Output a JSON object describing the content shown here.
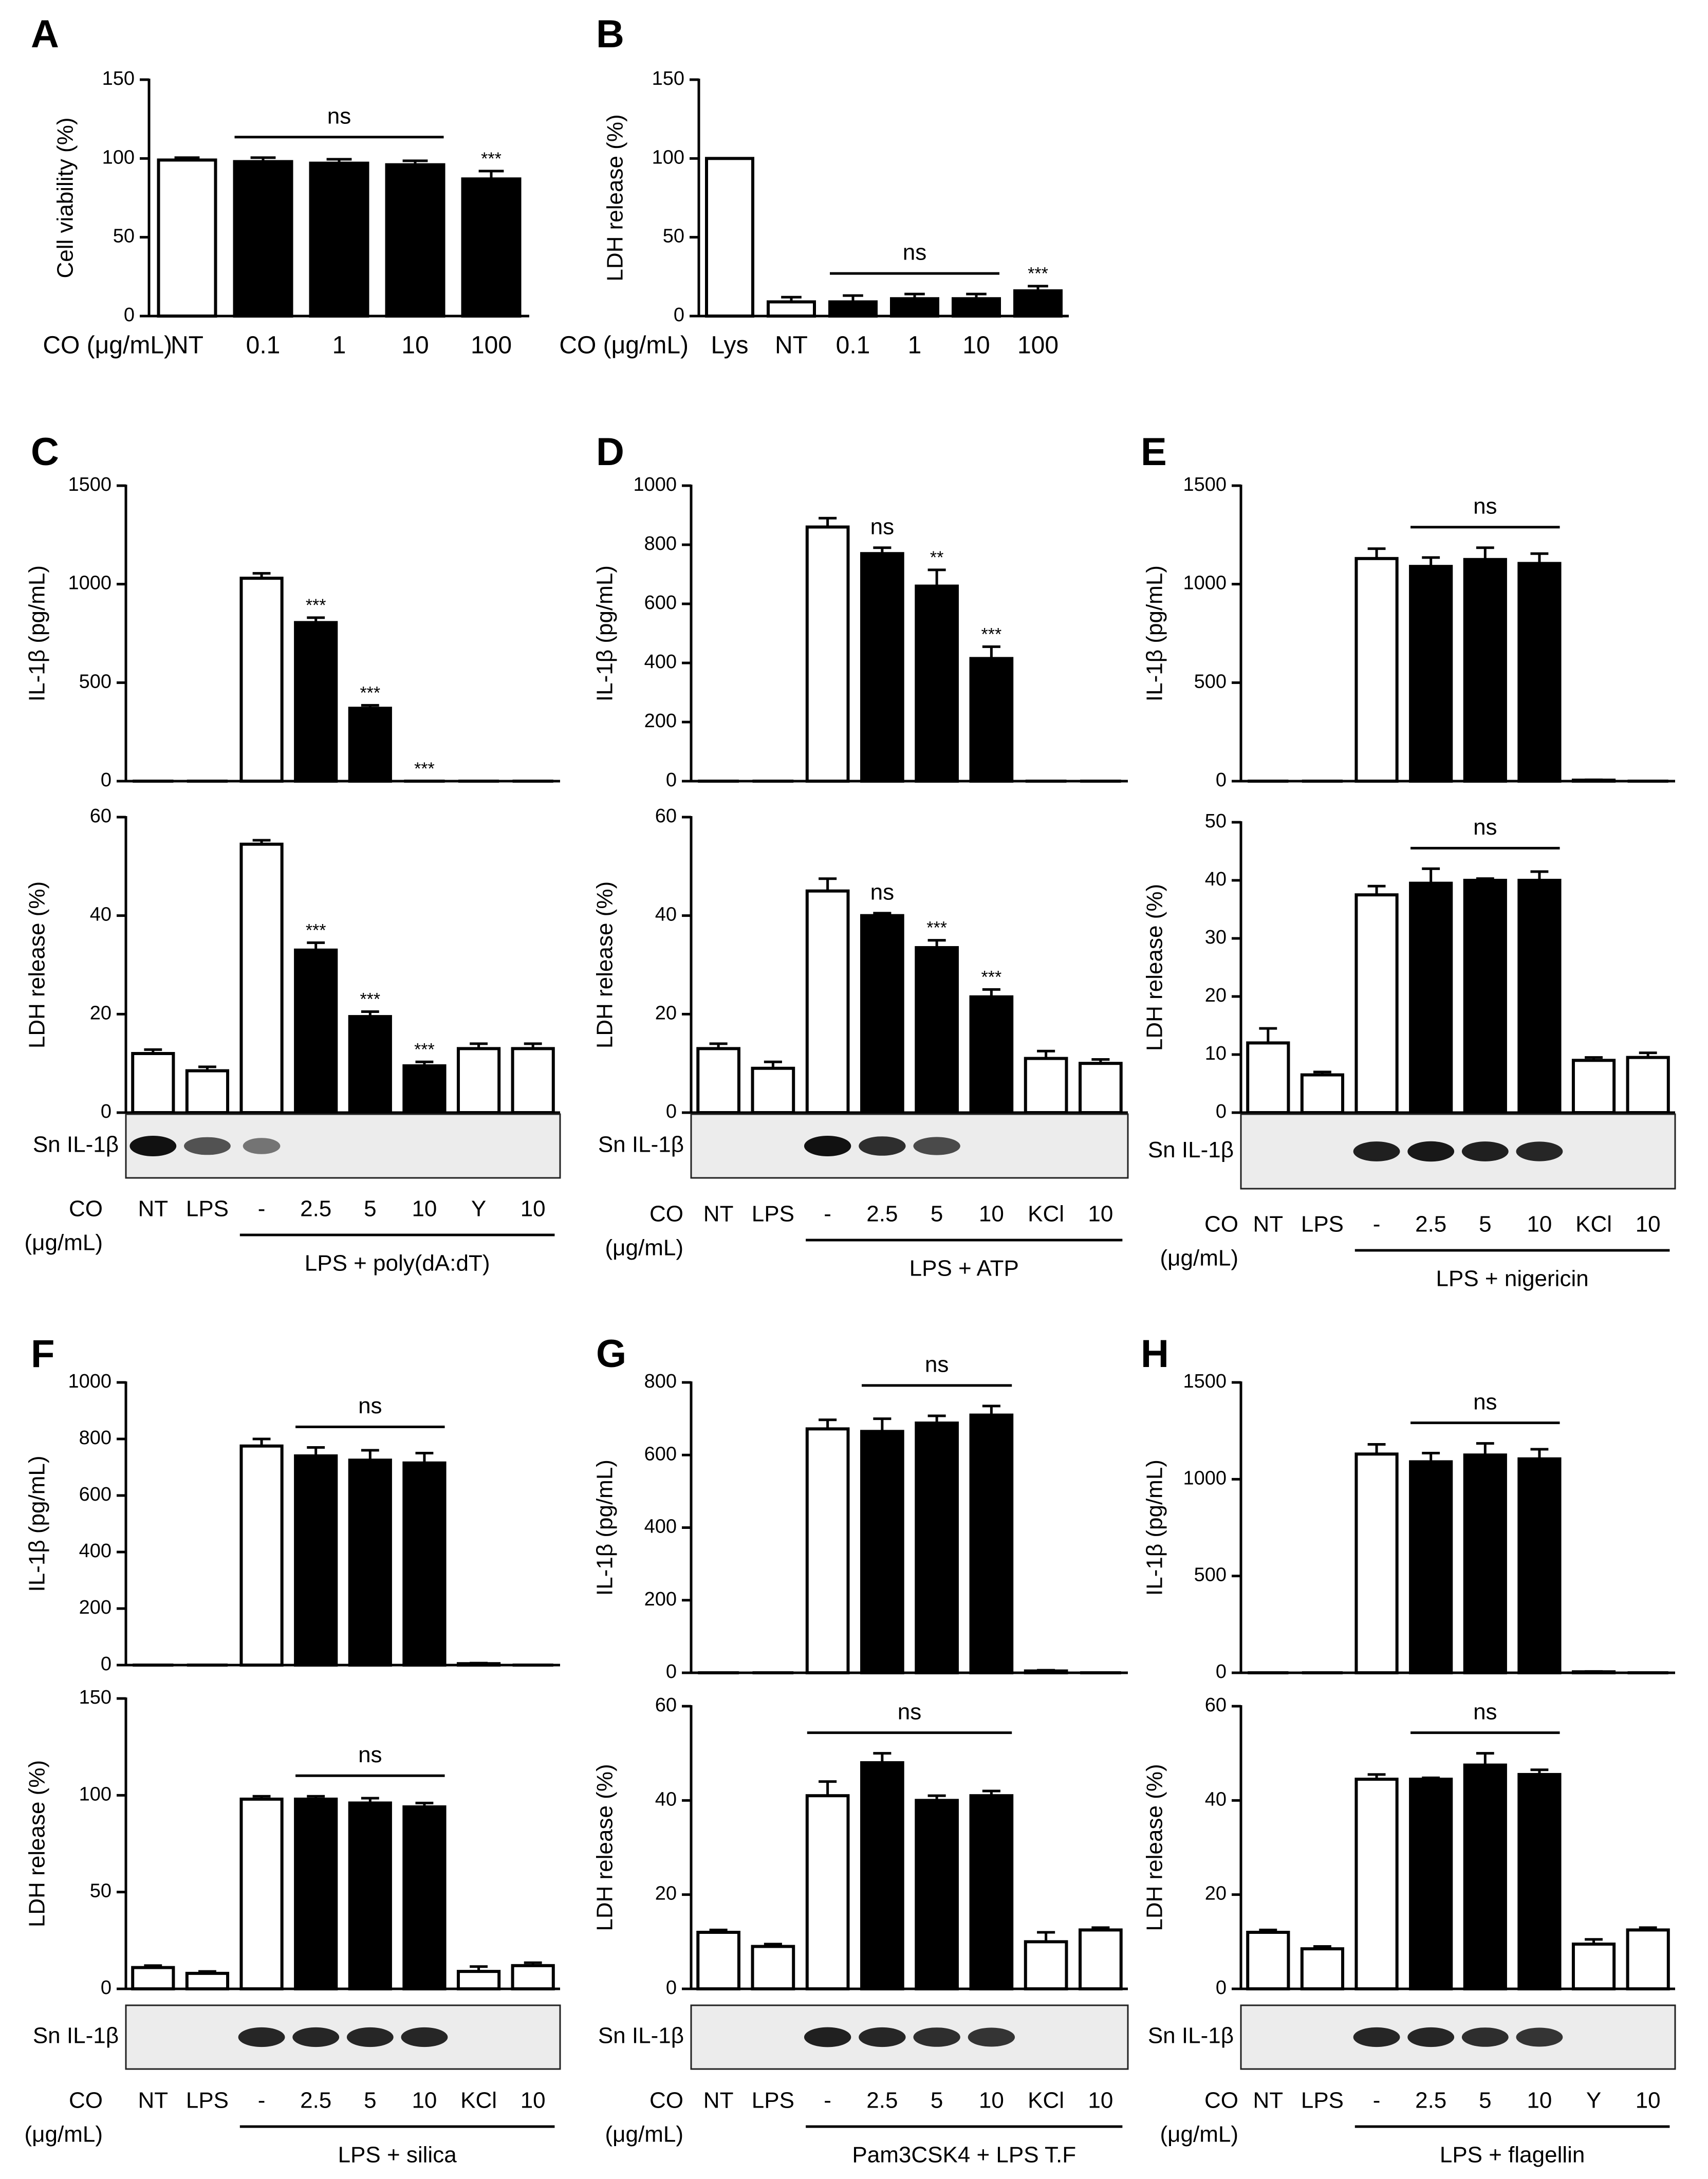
{
  "chart_data": [
    {
      "panel": "A",
      "type": "bar",
      "categories": [
        "NT",
        "0.1",
        "1",
        "10",
        "100"
      ],
      "series": [
        {
          "name": "Cell viability",
          "values": [
            99,
            98,
            97,
            96,
            87
          ],
          "errors": [
            1.5,
            2.5,
            2.5,
            2.5,
            5
          ]
        }
      ],
      "fill": [
        "open",
        "filled",
        "filled",
        "filled",
        "filled"
      ],
      "ylabel": "Cell viability (%)",
      "xlabel": "CO (μg/mL)",
      "ylim": [
        0,
        150
      ],
      "yticks": [
        0,
        50,
        100,
        150
      ],
      "significance": [
        {
          "text": "***",
          "over": 4
        }
      ],
      "ns_bars": [
        {
          "from": 1,
          "to": 3,
          "text": "ns"
        }
      ]
    },
    {
      "panel": "B",
      "type": "bar",
      "categories": [
        "Lys",
        "NT",
        "0.1",
        "1",
        "10",
        "100"
      ],
      "series": [
        {
          "name": "LDH release",
          "values": [
            100,
            9,
            9,
            11,
            11,
            16
          ],
          "errors": [
            0,
            3,
            4,
            3,
            3,
            3
          ]
        }
      ],
      "fill": [
        "open",
        "open",
        "filled",
        "filled",
        "filled",
        "filled"
      ],
      "ylabel": "LDH release (%)",
      "xlabel": "CO (μg/mL)",
      "ylim": [
        0,
        150
      ],
      "yticks": [
        0,
        50,
        100,
        150
      ],
      "significance": [
        {
          "text": "***",
          "over": 5
        }
      ],
      "ns_bars": [
        {
          "from": 2,
          "to": 4,
          "text": "ns"
        }
      ]
    },
    {
      "panel": "C",
      "type": "bar",
      "categories": [
        "NT",
        "LPS",
        "-",
        "2.5",
        "5",
        "10",
        "Y",
        "10"
      ],
      "fill": [
        "open",
        "open",
        "open",
        "filled",
        "filled",
        "filled",
        "open",
        "open"
      ],
      "xlabel": "CO (μg/mL)",
      "group_label": "LPS + poly(dA:dT)",
      "group_range": [
        2,
        7
      ],
      "blot_label": "Sn IL-1β",
      "blot_bands": [
        1.0,
        0.55,
        0.3,
        0,
        0,
        0,
        0,
        0
      ],
      "top": {
        "ylabel": "IL-1β (pg/mL)",
        "ylim": [
          0,
          1500
        ],
        "yticks": [
          0,
          500,
          1000,
          1500
        ],
        "values": [
          0,
          0,
          1030,
          805,
          370,
          0,
          0,
          0
        ],
        "errors": [
          0,
          0,
          25,
          25,
          15,
          0,
          0,
          0
        ],
        "significance": [
          {
            "text": "***",
            "over": 3
          },
          {
            "text": "***",
            "over": 4
          },
          {
            "text": "***",
            "over": 5
          }
        ],
        "ns_bars": []
      },
      "bottom": {
        "ylabel": "LDH release (%)",
        "ylim": [
          0,
          60
        ],
        "yticks": [
          0,
          20,
          40,
          60
        ],
        "values": [
          12,
          8.5,
          54.5,
          33,
          19.5,
          9.5,
          13,
          13
        ],
        "errors": [
          0.8,
          0.8,
          0.8,
          1.5,
          1.0,
          0.8,
          1.0,
          1.0
        ],
        "significance": [
          {
            "text": "***",
            "over": 3
          },
          {
            "text": "***",
            "over": 4
          },
          {
            "text": "***",
            "over": 5
          }
        ],
        "ns_bars": []
      }
    },
    {
      "panel": "D",
      "type": "bar",
      "categories": [
        "NT",
        "LPS",
        "-",
        "2.5",
        "5",
        "10",
        "KCl",
        "10"
      ],
      "fill": [
        "open",
        "open",
        "open",
        "filled",
        "filled",
        "filled",
        "open",
        "open"
      ],
      "xlabel": "CO (μg/mL)",
      "group_label": "LPS + ATP",
      "group_range": [
        2,
        7
      ],
      "blot_label": "Sn IL-1β",
      "blot_bands": [
        0,
        0,
        1.0,
        0.8,
        0.6,
        0,
        0,
        0
      ],
      "top": {
        "ylabel": "IL-1β (pg/mL)",
        "ylim": [
          0,
          1000
        ],
        "yticks": [
          0,
          200,
          400,
          600,
          800,
          1000
        ],
        "values": [
          0,
          0,
          860,
          770,
          660,
          415,
          0,
          0
        ],
        "errors": [
          0,
          0,
          30,
          20,
          55,
          40,
          0,
          0
        ],
        "significance": [
          {
            "text": "ns",
            "over": 3
          },
          {
            "text": "**",
            "over": 4
          },
          {
            "text": "***",
            "over": 5
          }
        ],
        "ns_bars": []
      },
      "bottom": {
        "ylabel": "LDH release (%)",
        "ylim": [
          0,
          60
        ],
        "yticks": [
          0,
          20,
          40,
          60
        ],
        "values": [
          13,
          9,
          45,
          40,
          33.5,
          23.5,
          11,
          10
        ],
        "errors": [
          1.0,
          1.3,
          2.5,
          0.5,
          1.5,
          1.5,
          1.5,
          0.8
        ],
        "significance": [
          {
            "text": "ns",
            "over": 3
          },
          {
            "text": "***",
            "over": 4
          },
          {
            "text": "***",
            "over": 5
          }
        ],
        "ns_bars": []
      }
    },
    {
      "panel": "E",
      "type": "bar",
      "categories": [
        "NT",
        "LPS",
        "-",
        "2.5",
        "5",
        "10",
        "KCl",
        "10"
      ],
      "fill": [
        "open",
        "open",
        "open",
        "filled",
        "filled",
        "filled",
        "open",
        "open"
      ],
      "xlabel": "CO (μg/mL)",
      "group_label": "LPS + nigericin",
      "group_range": [
        2,
        7
      ],
      "blot_label": "Sn IL-1β",
      "blot_bands": [
        0,
        0,
        0.9,
        0.95,
        0.9,
        0.85,
        0,
        0
      ],
      "top": {
        "ylabel": "IL-1β (pg/mL)",
        "ylim": [
          0,
          1500
        ],
        "yticks": [
          0,
          500,
          1000,
          1500
        ],
        "values": [
          0,
          0,
          1130,
          1090,
          1125,
          1105,
          5,
          0
        ],
        "errors": [
          0,
          0,
          50,
          45,
          60,
          50,
          2,
          0
        ],
        "significance": [],
        "ns_bars": [
          {
            "from": 3,
            "to": 5,
            "text": "ns"
          }
        ]
      },
      "bottom": {
        "ylabel": "LDH release (%)",
        "ylim": [
          0,
          50
        ],
        "yticks": [
          0,
          10,
          20,
          30,
          40,
          50
        ],
        "values": [
          12,
          6.5,
          37.5,
          39.5,
          40,
          40,
          9,
          9.5
        ],
        "errors": [
          2.5,
          0.5,
          1.5,
          2.5,
          0.3,
          1.5,
          0.5,
          0.8
        ],
        "significance": [],
        "ns_bars": [
          {
            "from": 3,
            "to": 5,
            "text": "ns"
          }
        ]
      }
    },
    {
      "panel": "F",
      "type": "bar",
      "categories": [
        "NT",
        "LPS",
        "-",
        "2.5",
        "5",
        "10",
        "KCl",
        "10"
      ],
      "fill": [
        "open",
        "open",
        "open",
        "filled",
        "filled",
        "filled",
        "open",
        "open"
      ],
      "xlabel": "CO (μg/mL)",
      "group_label": "LPS + silica",
      "group_range": [
        2,
        7
      ],
      "blot_label": "Sn IL-1β",
      "blot_bands": [
        0,
        0,
        0.85,
        0.85,
        0.85,
        0.85,
        0,
        0
      ],
      "top": {
        "ylabel": "IL-1β (pg/mL)",
        "ylim": [
          0,
          1000
        ],
        "yticks": [
          0,
          200,
          400,
          600,
          800,
          1000
        ],
        "values": [
          0,
          0,
          775,
          740,
          725,
          715,
          5,
          0
        ],
        "errors": [
          0,
          0,
          25,
          30,
          35,
          35,
          2,
          0
        ],
        "significance": [],
        "ns_bars": [
          {
            "from": 3,
            "to": 5,
            "text": "ns"
          }
        ]
      },
      "bottom": {
        "ylabel": "LDH release (%)",
        "ylim": [
          0,
          150
        ],
        "yticks": [
          0,
          50,
          100,
          150
        ],
        "values": [
          11,
          8,
          98,
          98,
          96,
          94,
          9,
          12
        ],
        "errors": [
          1.0,
          1.0,
          1.5,
          1.5,
          2.5,
          2.0,
          2.5,
          1.5
        ],
        "significance": [],
        "ns_bars": [
          {
            "from": 3,
            "to": 5,
            "text": "ns"
          }
        ]
      }
    },
    {
      "panel": "G",
      "type": "bar",
      "categories": [
        "NT",
        "LPS",
        "-",
        "2.5",
        "5",
        "10",
        "KCl",
        "10"
      ],
      "fill": [
        "open",
        "open",
        "open",
        "filled",
        "filled",
        "filled",
        "open",
        "open"
      ],
      "xlabel": "CO (μg/mL)",
      "group_label": "Pam3CSK4 + LPS T.F",
      "group_range": [
        2,
        7
      ],
      "blot_label": "Sn IL-1β",
      "blot_bands": [
        0,
        0,
        0.9,
        0.85,
        0.8,
        0.75,
        0,
        0
      ],
      "top": {
        "ylabel": "IL-1β (pg/mL)",
        "ylim": [
          0,
          800
        ],
        "yticks": [
          0,
          200,
          400,
          600,
          800
        ],
        "values": [
          0,
          0,
          672,
          665,
          688,
          710,
          5,
          0
        ],
        "errors": [
          0,
          0,
          25,
          35,
          20,
          25,
          2,
          0
        ],
        "significance": [],
        "ns_bars": [
          {
            "from": 3,
            "to": 5,
            "text": "ns"
          }
        ]
      },
      "bottom": {
        "ylabel": "LDH release (%)",
        "ylim": [
          0,
          60
        ],
        "yticks": [
          0,
          20,
          40,
          60
        ],
        "values": [
          12,
          9,
          41,
          48,
          40,
          41,
          10,
          12.5
        ],
        "errors": [
          0.5,
          0.5,
          3.0,
          2.0,
          1.0,
          1.0,
          2.0,
          0.5
        ],
        "significance": [],
        "ns_bars": [
          {
            "from": 2,
            "to": 5,
            "text": "ns"
          }
        ]
      }
    },
    {
      "panel": "H",
      "type": "bar",
      "categories": [
        "NT",
        "LPS",
        "-",
        "2.5",
        "5",
        "10",
        "Y",
        "10"
      ],
      "fill": [
        "open",
        "open",
        "open",
        "filled",
        "filled",
        "filled",
        "open",
        "open"
      ],
      "xlabel": "CO (μg/mL)",
      "group_label": "LPS + flagellin",
      "group_range": [
        2,
        7
      ],
      "blot_label": "Sn IL-1β",
      "blot_bands": [
        0,
        0,
        0.85,
        0.85,
        0.8,
        0.75,
        0,
        0
      ],
      "top": {
        "ylabel": "IL-1β (pg/mL)",
        "ylim": [
          0,
          1500
        ],
        "yticks": [
          0,
          500,
          1000,
          1500
        ],
        "values": [
          0,
          0,
          1130,
          1090,
          1125,
          1105,
          5,
          0
        ],
        "errors": [
          0,
          0,
          50,
          45,
          60,
          50,
          2,
          0
        ],
        "significance": [],
        "ns_bars": [
          {
            "from": 3,
            "to": 5,
            "text": "ns"
          }
        ]
      },
      "bottom": {
        "ylabel": "LDH release (%)",
        "ylim": [
          0,
          60
        ],
        "yticks": [
          0,
          20,
          40,
          60
        ],
        "values": [
          12,
          8.5,
          44.5,
          44.5,
          47.5,
          45.5,
          9.5,
          12.5
        ],
        "errors": [
          0.5,
          0.5,
          1.0,
          0.3,
          2.5,
          1.0,
          1.0,
          0.5
        ],
        "significance": [],
        "ns_bars": [
          {
            "from": 3,
            "to": 5,
            "text": "ns"
          }
        ]
      }
    }
  ]
}
